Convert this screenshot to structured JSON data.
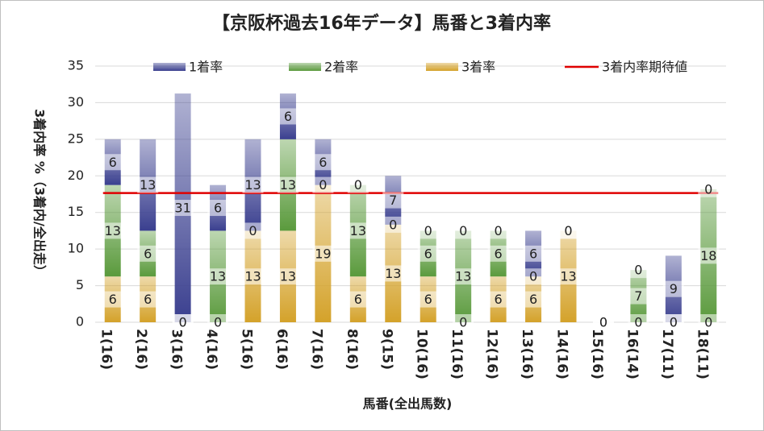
{
  "chart_data": {
    "type": "bar",
    "stacked": true,
    "title": "【京阪杯過去16年データ】馬番と3着内率",
    "x_label": "馬番(全出馬数)",
    "y_label": "3着内率 %（3着内/全出走）",
    "categories": [
      "1(16)",
      "2(16)",
      "3(16)",
      "4(16)",
      "5(16)",
      "6(16)",
      "7(16)",
      "8(16)",
      "9(15)",
      "10(16)",
      "11(16)",
      "12(16)",
      "13(16)",
      "14(16)",
      "15(16)",
      "16(14)",
      "17(11)",
      "18(11)"
    ],
    "series": [
      {
        "name": "3着率",
        "color": "#d4a22a",
        "values": [
          6.25,
          6.25,
          0,
          0,
          12.5,
          12.5,
          18.75,
          6.25,
          13.33,
          6.25,
          0,
          6.25,
          6.25,
          12.5,
          0,
          0,
          0,
          0
        ],
        "value_labels": [
          "6",
          "6",
          "0",
          "0",
          "13",
          "13",
          "19",
          "6",
          "13",
          "6",
          "0",
          "6",
          "6",
          "13",
          "0",
          "0",
          "0",
          "0"
        ]
      },
      {
        "name": "2着率",
        "color": "#5a9a3c",
        "values": [
          12.5,
          6.25,
          0,
          12.5,
          0,
          12.5,
          0,
          12.5,
          0,
          6.25,
          12.5,
          6.25,
          0,
          0,
          0,
          7.14,
          0,
          18.18
        ],
        "value_labels": [
          "13",
          "6",
          "0",
          "13",
          "0",
          "13",
          "0",
          "13",
          "0",
          "6",
          "13",
          "6",
          "0",
          "0",
          "0",
          "7",
          "0",
          "18"
        ]
      },
      {
        "name": "1着率",
        "color": "#3a3f8f",
        "values": [
          6.25,
          12.5,
          31.25,
          6.25,
          12.5,
          6.25,
          6.25,
          0,
          6.67,
          0,
          0,
          0,
          6.25,
          0,
          0,
          0,
          9.09,
          0
        ],
        "value_labels": [
          "6",
          "13",
          "31",
          "6",
          "13",
          "6",
          "6",
          "0",
          "7",
          "0",
          "0",
          "0",
          "6",
          "0",
          "0",
          "0",
          "9",
          "0"
        ]
      }
    ],
    "reference_line": {
      "name": "3着内率期待値",
      "color": "#e00000",
      "value": 17.65
    },
    "ylim": [
      0,
      35
    ],
    "yticks": [
      0,
      5,
      10,
      15,
      20,
      25,
      30,
      35
    ],
    "grid": true
  }
}
